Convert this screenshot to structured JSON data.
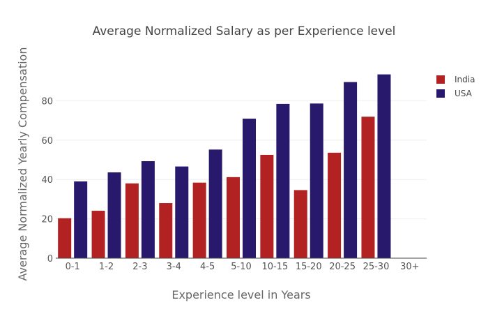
{
  "chart_data": {
    "type": "bar",
    "title": "Average Normalized Salary as per Experience level",
    "xlabel": "Experience level in Years",
    "ylabel": "Average Normalized Yearly Compensation",
    "categories": [
      "0-1",
      "1-2",
      "2-3",
      "3-4",
      "4-5",
      "5-10",
      "10-15",
      "15-20",
      "20-25",
      "25-30",
      "30+"
    ],
    "series": [
      {
        "name": "India",
        "color": "#b22222",
        "values": [
          20.3,
          24.1,
          38.0,
          28.0,
          38.4,
          41.2,
          52.5,
          34.6,
          53.6,
          71.9,
          null
        ]
      },
      {
        "name": "USA",
        "color": "#28196c",
        "values": [
          39.0,
          43.6,
          49.3,
          46.6,
          55.2,
          70.9,
          78.4,
          78.6,
          89.5,
          93.4,
          null
        ]
      }
    ],
    "yticks": [
      0,
      20,
      40,
      60,
      80
    ],
    "ylim": [
      0,
      100
    ],
    "grid": true,
    "legend_position": "top-right"
  }
}
